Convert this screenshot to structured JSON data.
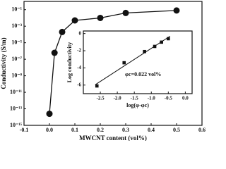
{
  "chart_data": [
    {
      "type": "line",
      "y_label": "Conductivity (S/m)",
      "x_label": "MWCNT content (vol%)",
      "x": [
        0.0,
        0.02,
        0.05,
        0.1,
        0.2,
        0.3,
        0.5
      ],
      "series": [
        {
          "color": "#111111",
          "values": [
            2.5e-14,
            6e-07,
            0.0002,
            0.005,
            0.01,
            0.04,
            0.08
          ]
        }
      ],
      "xlim": [
        -0.1,
        0.6
      ],
      "xticks": [
        {
          "value": -0.1,
          "label": "-0.1"
        },
        {
          "value": 0.0,
          "label": "0.0"
        },
        0.1,
        0.2,
        0.3,
        0.4,
        0.5,
        0.6
      ],
      "ylim": [
        1e-15,
        1
      ],
      "ylog": true,
      "yticks": [
        {
          "value": 0.1,
          "label": "10⁻¹"
        },
        {
          "value": 0.001,
          "label": "10⁻³"
        },
        {
          "value": 1e-05,
          "label": "10⁻⁵"
        },
        {
          "value": 1e-07,
          "label": "10⁻⁷"
        },
        {
          "value": 1e-09,
          "label": "10⁻⁹"
        },
        {
          "value": 1e-11,
          "label": "10⁻¹¹"
        },
        {
          "value": 1e-13,
          "label": "10⁻¹³"
        },
        {
          "value": 1e-15,
          "label": "10⁻¹⁵"
        }
      ]
    },
    {
      "type": "scatter",
      "y_label": "Log conductivity",
      "x_label": "log(φ-φc)",
      "annotation": "φc=0.022 vol%",
      "x": [
        -2.6,
        -1.8,
        -1.2,
        -0.9,
        -0.7,
        -0.5
      ],
      "series": [
        {
          "color": "#111111",
          "values": [
            -6.1,
            -3.4,
            -2.1,
            -1.5,
            -1.0,
            -0.6
          ]
        }
      ],
      "xlim": [
        -3.0,
        0.2
      ],
      "xticks": [
        -2.5,
        {
          "value": -2.0,
          "label": "-2.0"
        },
        -1.5,
        {
          "value": -1.0,
          "label": "-1.0"
        },
        -0.5,
        {
          "value": 0.0,
          "label": "0.0"
        }
      ],
      "ylim": [
        -7,
        0.3
      ],
      "yticks": [
        -6,
        -4,
        -2,
        0
      ],
      "fit_line": true
    }
  ]
}
